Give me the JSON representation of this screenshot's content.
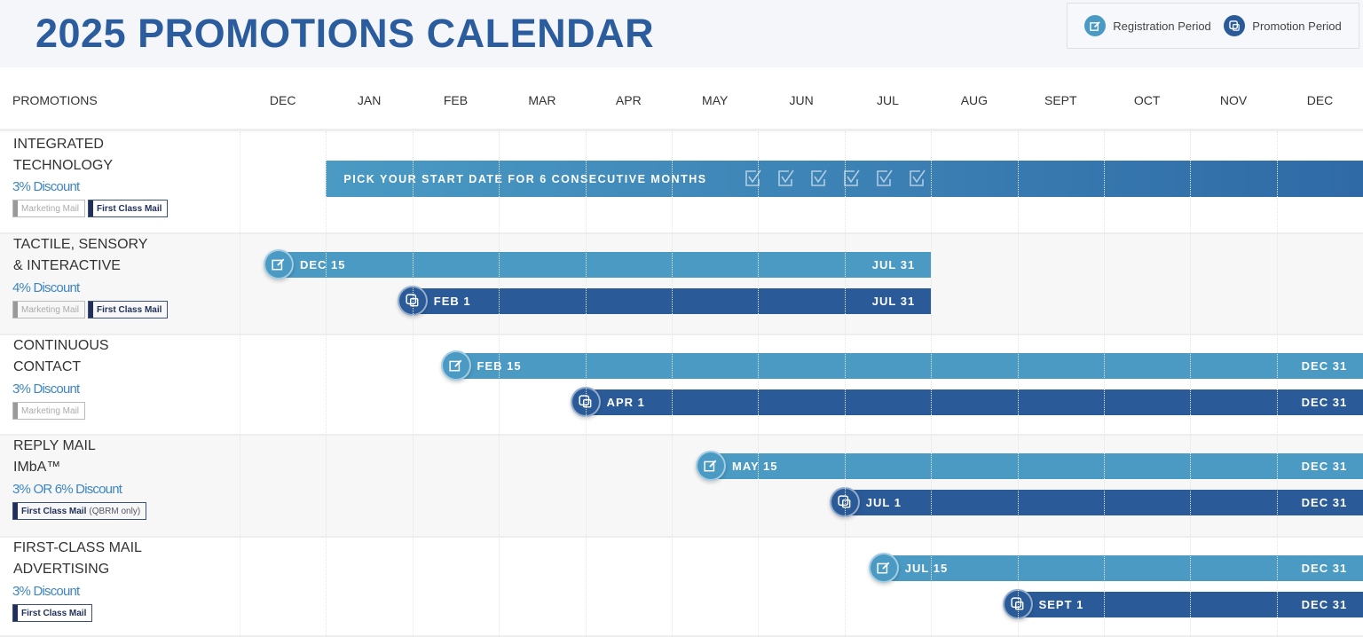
{
  "title": "2025 PROMOTIONS CALENDAR",
  "legend": [
    {
      "label": "Registration Period",
      "icon": "edit-icon",
      "color": "#4a9ac4"
    },
    {
      "label": "Promotion Period",
      "icon": "promotion-icon",
      "color": "#2a5b98"
    }
  ],
  "colors": {
    "registration": "#4a9ac4",
    "promotion": "#2a5b98",
    "title": "#2b5c9e",
    "discount": "#3d86c2"
  },
  "chart_data": {
    "type": "bar",
    "orientation": "horizontal",
    "title": "2025 PROMOTIONS CALENDAR",
    "row_header": "PROMOTIONS",
    "months": [
      "DEC",
      "JAN",
      "FEB",
      "MAR",
      "APR",
      "MAY",
      "JUN",
      "JUL",
      "AUG",
      "SEPT",
      "OCT",
      "NOV",
      "DEC"
    ],
    "x_range": [
      "2024-12-01",
      "2025-12-31"
    ],
    "grid": true,
    "legend_position": "top-right",
    "rows": [
      {
        "name": [
          "INTEGRATED",
          "TECHNOLOGY"
        ],
        "discount": "3% Discount",
        "tags": [
          {
            "label": "Marketing Mail",
            "kind": "mm"
          },
          {
            "label": "First Class Mail",
            "kind": "fc"
          }
        ],
        "banner": {
          "text": "PICK YOUR START DATE FOR 6 CONSECUTIVE MONTHS",
          "start": "2025-01-01",
          "end": "2025-12-31",
          "checkmarks": 6
        },
        "bars": []
      },
      {
        "name": [
          "TACTILE, SENSORY",
          "& INTERACTIVE"
        ],
        "discount": "4% Discount",
        "tags": [
          {
            "label": "Marketing Mail",
            "kind": "mm"
          },
          {
            "label": "First Class Mail",
            "kind": "fc"
          }
        ],
        "bars": [
          {
            "type": "registration",
            "start": "2024-12-15",
            "end": "2025-07-31",
            "start_label": "DEC 15",
            "end_label": "JUL 31"
          },
          {
            "type": "promotion",
            "start": "2025-02-01",
            "end": "2025-07-31",
            "start_label": "FEB 1",
            "end_label": "JUL 31"
          }
        ]
      },
      {
        "name": [
          "CONTINUOUS",
          "CONTACT"
        ],
        "discount": "3% Discount",
        "tags": [
          {
            "label": "Marketing Mail",
            "kind": "mm"
          }
        ],
        "bars": [
          {
            "type": "registration",
            "start": "2025-02-15",
            "end": "2025-12-31",
            "start_label": "FEB 15",
            "end_label": "DEC 31"
          },
          {
            "type": "promotion",
            "start": "2025-04-01",
            "end": "2025-12-31",
            "start_label": "APR 1",
            "end_label": "DEC 31"
          }
        ]
      },
      {
        "name": [
          "REPLY MAIL",
          "IMbA™"
        ],
        "discount": "3% OR 6% Discount",
        "tags": [
          {
            "label": "First Class Mail",
            "kind": "fc",
            "extra": "(QBRM only)"
          }
        ],
        "bars": [
          {
            "type": "registration",
            "start": "2025-05-15",
            "end": "2025-12-31",
            "start_label": "MAY 15",
            "end_label": "DEC 31"
          },
          {
            "type": "promotion",
            "start": "2025-07-01",
            "end": "2025-12-31",
            "start_label": "JUL 1",
            "end_label": "DEC 31"
          }
        ]
      },
      {
        "name": [
          "FIRST-CLASS MAIL",
          "ADVERTISING"
        ],
        "discount": "3% Discount",
        "tags": [
          {
            "label": "First Class Mail",
            "kind": "fc"
          }
        ],
        "bars": [
          {
            "type": "registration",
            "start": "2025-07-15",
            "end": "2025-12-31",
            "start_label": "JUL 15",
            "end_label": "DEC 31"
          },
          {
            "type": "promotion",
            "start": "2025-09-01",
            "end": "2025-12-31",
            "start_label": "SEPT 1",
            "end_label": "DEC 31"
          }
        ]
      }
    ]
  }
}
